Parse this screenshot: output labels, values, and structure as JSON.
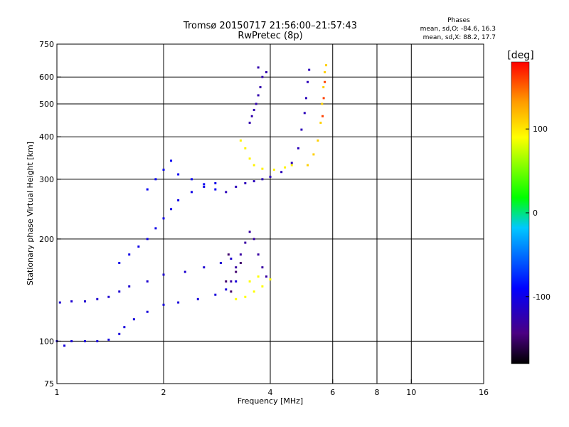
{
  "chart_data": {
    "type": "scatter",
    "title": "Tromsø 20150717 21:56:00–21:57:43",
    "subtitle": "RwPretec (8p)",
    "phase_stats": {
      "header": "Phases",
      "line_o": "mean, sd,O: -84.6, 16.3",
      "line_x": "mean, sd,X:  88.2, 17.7"
    },
    "xlabel": "Frequency [MHz]",
    "ylabel": "Stationary phase Virtual Height [km]",
    "x_scale": "log",
    "y_scale": "log",
    "xlim": [
      1,
      16
    ],
    "ylim": [
      75,
      750
    ],
    "x_ticks": [
      1,
      2,
      4,
      6,
      8,
      10,
      16
    ],
    "y_ticks": [
      75,
      100,
      200,
      300,
      400,
      500,
      600,
      750
    ],
    "x_gridlines": [
      2,
      4,
      6,
      8,
      10
    ],
    "y_gridlines": [
      100,
      200,
      300,
      400,
      500,
      600
    ],
    "grid": true,
    "colorbar": {
      "label": "[deg]",
      "range": [
        -180,
        180
      ],
      "ticks": [
        100,
        0,
        -100
      ]
    },
    "traces": [
      {
        "name": "",
        "phase": -105,
        "points": [
          [
            1.0,
            100
          ],
          [
            1.05,
            97
          ],
          [
            1.1,
            100
          ],
          [
            1.2,
            100
          ],
          [
            1.3,
            100
          ],
          [
            1.4,
            101
          ],
          [
            1.5,
            105
          ],
          [
            1.55,
            110
          ],
          [
            1.65,
            116
          ],
          [
            1.8,
            122
          ],
          [
            2.0,
            128
          ],
          [
            2.2,
            130
          ],
          [
            2.5,
            133
          ],
          [
            2.8,
            137
          ],
          [
            3.0,
            142
          ],
          [
            3.2,
            150
          ]
        ]
      },
      {
        "name": "",
        "phase": -110,
        "points": [
          [
            1.02,
            130
          ],
          [
            1.1,
            131
          ],
          [
            1.2,
            131
          ],
          [
            1.3,
            133
          ],
          [
            1.4,
            135
          ],
          [
            1.5,
            140
          ],
          [
            1.6,
            145
          ],
          [
            1.8,
            150
          ],
          [
            2.0,
            157
          ],
          [
            2.3,
            160
          ],
          [
            2.6,
            165
          ],
          [
            2.9,
            170
          ],
          [
            3.1,
            175
          ]
        ]
      },
      {
        "name": "",
        "phase": -100,
        "points": [
          [
            1.5,
            170
          ],
          [
            1.6,
            180
          ],
          [
            1.7,
            190
          ],
          [
            1.8,
            200
          ],
          [
            1.9,
            215
          ],
          [
            2.0,
            230
          ],
          [
            2.1,
            245
          ],
          [
            2.2,
            260
          ],
          [
            2.4,
            275
          ],
          [
            2.6,
            285
          ],
          [
            2.8,
            292
          ]
        ]
      },
      {
        "name": "",
        "phase": -95,
        "points": [
          [
            1.8,
            280
          ],
          [
            1.9,
            300
          ],
          [
            2.0,
            320
          ],
          [
            2.1,
            340
          ],
          [
            2.2,
            310
          ],
          [
            2.4,
            300
          ],
          [
            2.6,
            290
          ],
          [
            2.8,
            280
          ]
        ]
      },
      {
        "name": "",
        "phase": -120,
        "points": [
          [
            3.0,
            275
          ],
          [
            3.2,
            285
          ],
          [
            3.4,
            292
          ],
          [
            3.6,
            296
          ],
          [
            3.8,
            300
          ],
          [
            4.0,
            305
          ],
          [
            4.3,
            315
          ],
          [
            4.6,
            335
          ],
          [
            4.8,
            370
          ],
          [
            4.9,
            420
          ],
          [
            5.0,
            470
          ],
          [
            5.05,
            520
          ],
          [
            5.1,
            580
          ],
          [
            5.15,
            630
          ]
        ]
      },
      {
        "name": "",
        "phase": -125,
        "points": [
          [
            3.5,
            440
          ],
          [
            3.55,
            460
          ],
          [
            3.6,
            480
          ],
          [
            3.65,
            500
          ],
          [
            3.7,
            530
          ],
          [
            3.75,
            560
          ],
          [
            3.8,
            600
          ],
          [
            3.7,
            640
          ],
          [
            3.9,
            620
          ]
        ]
      },
      {
        "name": "",
        "phase": 95,
        "points": [
          [
            3.3,
            390
          ],
          [
            3.4,
            370
          ],
          [
            3.5,
            345
          ],
          [
            3.6,
            330
          ],
          [
            3.8,
            322
          ],
          [
            4.1,
            320
          ],
          [
            4.4,
            325
          ],
          [
            4.6,
            330
          ]
        ]
      },
      {
        "name": "",
        "phase": 110,
        "points": [
          [
            5.1,
            330
          ],
          [
            5.3,
            355
          ],
          [
            5.45,
            390
          ],
          [
            5.55,
            440
          ],
          [
            5.6,
            500
          ],
          [
            5.65,
            560
          ],
          [
            5.7,
            620
          ],
          [
            5.75,
            650
          ]
        ]
      },
      {
        "name": "",
        "phase": 160,
        "points": [
          [
            5.62,
            460
          ],
          [
            5.66,
            520
          ],
          [
            5.7,
            580
          ]
        ]
      },
      {
        "name": "",
        "phase": -130,
        "points": [
          [
            3.1,
            150
          ],
          [
            3.2,
            165
          ],
          [
            3.3,
            180
          ],
          [
            3.4,
            195
          ],
          [
            3.5,
            210
          ],
          [
            3.6,
            200
          ],
          [
            3.7,
            180
          ],
          [
            3.8,
            165
          ],
          [
            3.9,
            155
          ]
        ]
      },
      {
        "name": "",
        "phase": 90,
        "points": [
          [
            3.2,
            133
          ],
          [
            3.4,
            135
          ],
          [
            3.6,
            140
          ],
          [
            3.8,
            145
          ],
          [
            4.0,
            152
          ],
          [
            3.7,
            155
          ],
          [
            3.5,
            150
          ]
        ]
      },
      {
        "name": "",
        "phase": -150,
        "points": [
          [
            3.0,
            150
          ],
          [
            3.1,
            140
          ],
          [
            3.2,
            160
          ],
          [
            3.3,
            170
          ],
          [
            3.05,
            180
          ]
        ]
      }
    ]
  }
}
